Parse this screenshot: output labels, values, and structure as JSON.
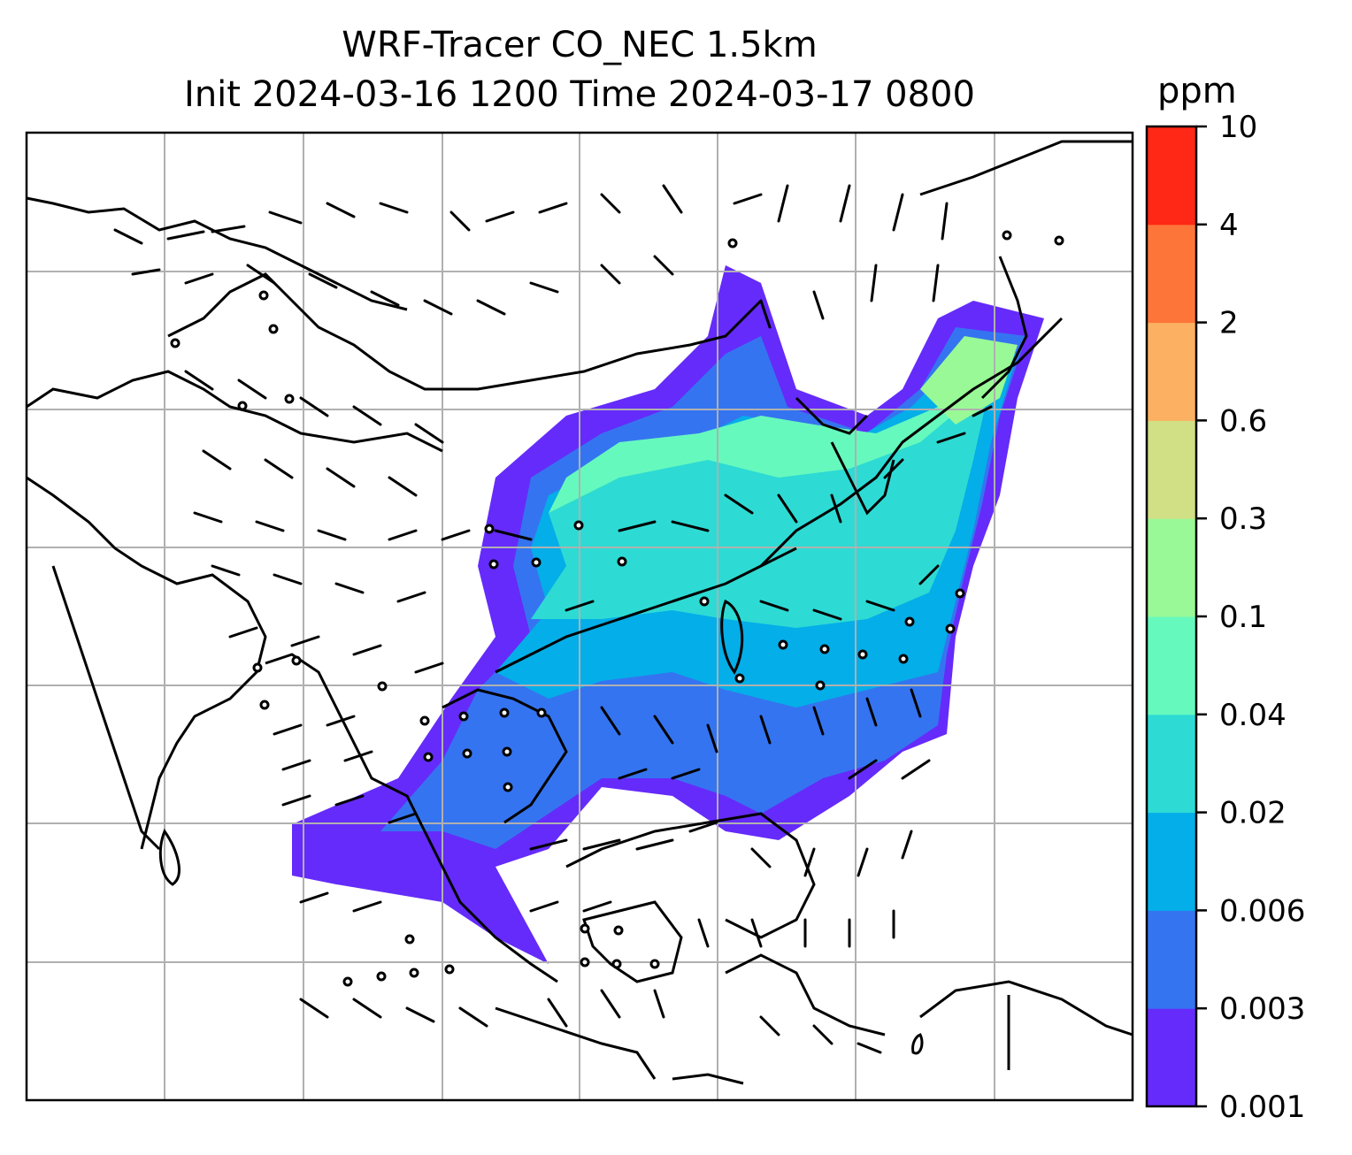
{
  "title_line1": "WRF-Tracer CO_NEC 1.5km",
  "title_line2": "Init 2024-03-16 1200 Time 2024-03-17 0800",
  "colorbar": {
    "unit": "ppm",
    "ticks": [
      "0.001",
      "0.003",
      "0.006",
      "0.02",
      "0.04",
      "0.1",
      "0.3",
      "0.6",
      "2",
      "4",
      "10"
    ],
    "colors": [
      "#652bfa",
      "#3574f0",
      "#04aee8",
      "#2ddbd4",
      "#66f9bd",
      "#99f996",
      "#d1df85",
      "#fcb062",
      "#fe7539",
      "#ff2715"
    ]
  },
  "map": {
    "features": [
      "coastlines",
      "country-borders",
      "lat-lon-gridlines",
      "wind-barbs",
      "tracer-concentration-shading"
    ]
  }
}
